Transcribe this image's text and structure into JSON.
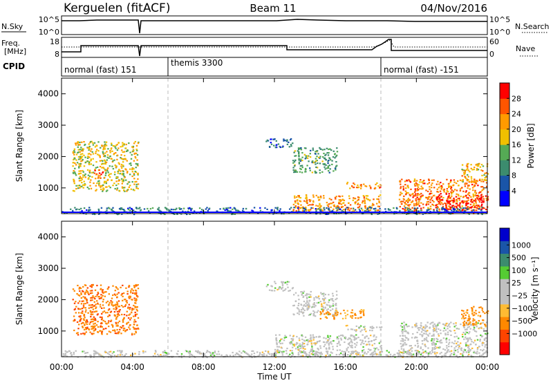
{
  "header": {
    "station": "Kerguelen (fitACF)",
    "beam": "Beam 11",
    "date": "04/Nov/2016"
  },
  "panels": {
    "sky_label": "N.Sky",
    "search_label": "N.Search",
    "freq_label_1": "Freq.",
    "freq_label_2": "[MHz]",
    "nave_label": "Nave",
    "cpid_label": "CPID",
    "sky_ticks": [
      "10^5",
      "10^0"
    ],
    "search_ticks": [
      "10^5",
      "10^0"
    ],
    "freq_ticks": [
      "18",
      "8"
    ],
    "nave_ticks": [
      "60",
      "0"
    ]
  },
  "cpid_segments": [
    {
      "label": "normal (fast) 151",
      "start_h": 0,
      "end_h": 6
    },
    {
      "label": "themis 3300",
      "start_h": 6,
      "end_h": 18
    },
    {
      "label": "normal (fast) -151",
      "start_h": 18,
      "end_h": 24
    }
  ],
  "colors": {
    "power_scale": [
      "#0000ff",
      "#1a55a8",
      "#3c8c6e",
      "#55aa55",
      "#f0c000",
      "#ff9a00",
      "#ff5500",
      "#ff0000"
    ],
    "velocity_scale": [
      "#ff0000",
      "#ff4400",
      "#ff8800",
      "#ffbb33",
      "#c0c0c0",
      "#c0c0c0",
      "#55cc33",
      "#3c8c6e",
      "#1a55a8",
      "#0000cc"
    ],
    "ground_scatter": "#c0c0c0"
  },
  "chart_data": [
    {
      "type": "heatmap",
      "name": "power",
      "xlabel": "Time UT",
      "ylabel": "Slant Range [km]",
      "xlim": [
        0,
        24
      ],
      "ylim": [
        180,
        4500
      ],
      "x_ticks": [
        "00:00",
        "04:00",
        "08:00",
        "12:00",
        "16:00",
        "20:00",
        "00:00"
      ],
      "y_ticks": [
        "1000",
        "2000",
        "3000",
        "4000"
      ],
      "colorbar_label": "Power [dB]",
      "colorbar_ticks": [
        "4",
        "8",
        "12",
        "16",
        "20",
        "24",
        "28"
      ],
      "regions": [
        {
          "h0": 0.6,
          "h1": 4.3,
          "r0": 900,
          "r1": 2500,
          "power": 18
        },
        {
          "h0": 1.8,
          "h1": 2.3,
          "r0": 1300,
          "r1": 1600,
          "power": 26
        },
        {
          "h0": 11.5,
          "h1": 13.0,
          "r0": 2300,
          "r1": 2600,
          "power": 6
        },
        {
          "h0": 13.0,
          "h1": 15.5,
          "r0": 1500,
          "r1": 2300,
          "power": 12
        },
        {
          "h0": 13.0,
          "h1": 18.0,
          "r0": 250,
          "r1": 800,
          "power": 22
        },
        {
          "h0": 16.0,
          "h1": 18.0,
          "r0": 1000,
          "r1": 1200,
          "power": 24
        },
        {
          "h0": 19.0,
          "h1": 24.0,
          "r0": 200,
          "r1": 1300,
          "power": 24
        },
        {
          "h0": 21.0,
          "h1": 24.0,
          "r0": 300,
          "r1": 800,
          "power": 30
        },
        {
          "h0": 22.5,
          "h1": 24.0,
          "r0": 1200,
          "r1": 1800,
          "power": 20
        },
        {
          "h0": 0.0,
          "h1": 24.0,
          "r0": 180,
          "r1": 400,
          "power": 8
        }
      ]
    },
    {
      "type": "heatmap",
      "name": "velocity",
      "xlabel": "Time UT",
      "ylabel": "Slant Range [km]",
      "xlim": [
        0,
        24
      ],
      "ylim": [
        180,
        4500
      ],
      "x_ticks": [
        "00:00",
        "04:00",
        "08:00",
        "12:00",
        "16:00",
        "20:00",
        "00:00"
      ],
      "y_ticks": [
        "1000",
        "2000",
        "3000",
        "4000"
      ],
      "colorbar_label": "Velocity [m s⁻¹]",
      "colorbar_ticks": [
        "1000",
        "500",
        "100",
        "25",
        "−25",
        "−100",
        "−500",
        "−1000"
      ],
      "regions": [
        {
          "h0": 0.6,
          "h1": 4.3,
          "r0": 900,
          "r1": 2500,
          "velocity": -400
        },
        {
          "h0": 11.5,
          "h1": 13.0,
          "r0": 2300,
          "r1": 2600,
          "velocity": 0
        },
        {
          "h0": 13.0,
          "h1": 15.5,
          "r0": 1500,
          "r1": 2300,
          "velocity": 0
        },
        {
          "h0": 14.5,
          "h1": 17.0,
          "r0": 1400,
          "r1": 1700,
          "velocity": -150
        },
        {
          "h0": 12.0,
          "h1": 18.0,
          "r0": 250,
          "r1": 900,
          "velocity": 0
        },
        {
          "h0": 16.0,
          "h1": 18.0,
          "r0": 1000,
          "r1": 1200,
          "velocity": 0
        },
        {
          "h0": 19.0,
          "h1": 24.0,
          "r0": 300,
          "r1": 1300,
          "velocity": 0
        },
        {
          "h0": 22.5,
          "h1": 24.0,
          "r0": 1200,
          "r1": 1800,
          "velocity": -200
        },
        {
          "h0": 0.0,
          "h1": 24.0,
          "r0": 180,
          "r1": 400,
          "velocity": 0
        }
      ]
    }
  ]
}
